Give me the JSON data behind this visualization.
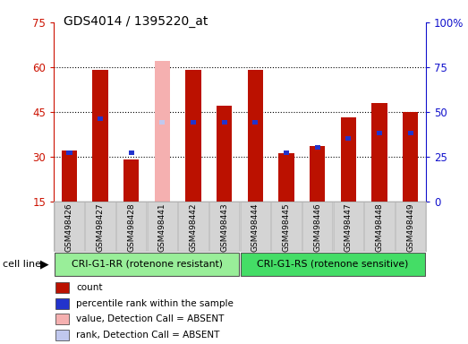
{
  "title": "GDS4014 / 1395220_at",
  "samples": [
    "GSM498426",
    "GSM498427",
    "GSM498428",
    "GSM498441",
    "GSM498442",
    "GSM498443",
    "GSM498444",
    "GSM498445",
    "GSM498446",
    "GSM498447",
    "GSM498448",
    "GSM498449"
  ],
  "red_values": [
    32.0,
    59.0,
    29.0,
    62.0,
    59.0,
    47.0,
    59.0,
    31.0,
    33.5,
    43.0,
    48.0,
    45.0
  ],
  "blue_percentiles": [
    27,
    46,
    27,
    44,
    44,
    44,
    44,
    27,
    30,
    35,
    38,
    38
  ],
  "absent_flags": [
    false,
    false,
    false,
    true,
    false,
    false,
    false,
    false,
    false,
    false,
    false,
    false
  ],
  "n_group1": 6,
  "n_group2": 6,
  "group1_label": "CRI-G1-RR (rotenone resistant)",
  "group2_label": "CRI-G1-RS (rotenone sensitive)",
  "cell_line_label": "cell line",
  "ylim_left": [
    15,
    75
  ],
  "ylim_right": [
    0,
    100
  ],
  "yticks_left": [
    15,
    30,
    45,
    60,
    75
  ],
  "yticks_right": [
    0,
    25,
    50,
    75,
    100
  ],
  "ytick_labels_right": [
    "0",
    "25",
    "50",
    "75",
    "100%"
  ],
  "bar_color_red": "#bb1100",
  "bar_color_blue": "#2233cc",
  "bar_color_absent_red": "#f5b0b0",
  "bar_color_absent_blue": "#c0c8ee",
  "bar_width": 0.5,
  "left_tick_color": "#cc1100",
  "right_tick_color": "#1111cc",
  "group1_bg": "#99ee99",
  "group2_bg": "#44dd66",
  "label_bg": "#cccccc",
  "legend_items": [
    "count",
    "percentile rank within the sample",
    "value, Detection Call = ABSENT",
    "rank, Detection Call = ABSENT"
  ],
  "legend_colors": [
    "#bb1100",
    "#2233cc",
    "#f5b0b0",
    "#c0c8ee"
  ]
}
